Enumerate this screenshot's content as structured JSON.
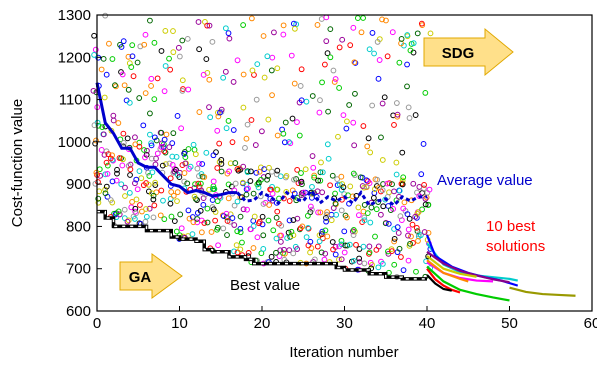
{
  "chart_data": {
    "type": "scatter",
    "title": "",
    "xlabel": "Iteration number",
    "ylabel": "Cost-function value",
    "xlim": [
      0,
      60
    ],
    "ylim": [
      600,
      1300
    ],
    "x_ticks": [
      0,
      10,
      20,
      30,
      40,
      50,
      60
    ],
    "y_ticks": [
      600,
      700,
      800,
      900,
      1000,
      1100,
      1200,
      1300
    ],
    "grid": false,
    "legend": "none",
    "population_colors": [
      "#ff0000",
      "#0000ff",
      "#00cc00",
      "#ff00ff",
      "#00cccc",
      "#cccc00",
      "#000000",
      "#ff8800",
      "#990099",
      "#006600",
      "#999999"
    ],
    "population_markers": {
      "x_range": [
        0,
        40
      ],
      "per_iteration_count": 22,
      "value_range": [
        640,
        1300
      ],
      "description_values": "many candidate solutions per GA iteration, dense between ~680 and ~1000"
    },
    "series": [
      {
        "name": "Average value",
        "color": "#0000cc",
        "x": [
          0,
          1,
          2,
          3,
          4,
          5,
          6,
          7,
          8,
          9,
          10,
          11,
          12,
          13,
          14,
          15,
          16,
          17,
          18,
          19,
          20,
          21,
          22,
          23,
          24,
          25,
          26,
          27,
          28,
          29,
          30,
          31,
          32,
          33,
          34,
          35,
          36,
          37,
          38,
          39,
          40
        ],
        "values": [
          1140,
          1045,
          1020,
          985,
          985,
          950,
          940,
          940,
          920,
          900,
          895,
          880,
          885,
          880,
          872,
          875,
          880,
          880,
          860,
          862,
          880,
          870,
          855,
          880,
          865,
          860,
          885,
          855,
          870,
          860,
          870,
          855,
          880,
          850,
          860,
          865,
          850,
          870,
          860,
          870,
          870
        ],
        "segment_types": "solid for x 0-17, dotted 17-40"
      },
      {
        "name": "Best value",
        "color": "#000000",
        "x": [
          0,
          1,
          2,
          3,
          4,
          5,
          6,
          7,
          8,
          9,
          10,
          11,
          12,
          13,
          14,
          15,
          16,
          17,
          18,
          19,
          20,
          21,
          22,
          23,
          24,
          25,
          26,
          27,
          28,
          29,
          30,
          31,
          32,
          33,
          34,
          35,
          36,
          37,
          38,
          39,
          40
        ],
        "values": [
          835,
          820,
          800,
          800,
          800,
          800,
          790,
          790,
          790,
          775,
          770,
          770,
          765,
          745,
          740,
          740,
          728,
          728,
          722,
          712,
          712,
          712,
          712,
          712,
          712,
          712,
          712,
          712,
          712,
          703,
          697,
          697,
          697,
          688,
          688,
          680,
          680,
          676,
          676,
          676,
          676
        ]
      }
    ],
    "sdg_curves": [
      {
        "color": "#ff0000",
        "x": [
          40,
          41,
          42,
          43,
          44
        ],
        "values": [
          700,
          675,
          660,
          650,
          644
        ]
      },
      {
        "color": "#000000",
        "x": [
          40,
          41,
          42,
          43
        ],
        "values": [
          685,
          665,
          652,
          648
        ]
      },
      {
        "color": "#00cc00",
        "x": [
          40,
          42,
          44,
          46,
          48,
          50
        ],
        "values": [
          705,
          670,
          650,
          640,
          632,
          625
        ]
      },
      {
        "color": "#ff00ff",
        "x": [
          40,
          42,
          44,
          46,
          48
        ],
        "values": [
          715,
          690,
          678,
          672,
          670
        ]
      },
      {
        "color": "#00cccc",
        "x": [
          40,
          42,
          44,
          46,
          48,
          50,
          51
        ],
        "values": [
          760,
          710,
          692,
          684,
          680,
          676,
          672
        ]
      },
      {
        "color": "#0000ff",
        "x": [
          40,
          41,
          43,
          45,
          47,
          49,
          51
        ],
        "values": [
          780,
          730,
          705,
          690,
          680,
          672,
          660
        ]
      },
      {
        "color": "#880088",
        "x": [
          40,
          42,
          44,
          46,
          48,
          50
        ],
        "values": [
          740,
          712,
          695,
          684,
          675,
          668
        ]
      },
      {
        "color": "#999900",
        "x": [
          50,
          52,
          54,
          56,
          58
        ],
        "values": [
          655,
          645,
          640,
          638,
          636
        ]
      },
      {
        "color": "#cccc00",
        "x": [
          40,
          42,
          44,
          46
        ],
        "values": [
          730,
          700,
          688,
          681
        ]
      },
      {
        "color": "#ff8800",
        "x": [
          40,
          42,
          44,
          45
        ],
        "values": [
          720,
          690,
          676,
          670
        ]
      }
    ],
    "annotations": [
      {
        "text": "Average value",
        "color": "#0000cc"
      },
      {
        "text": "10 best",
        "color": "#ff0000"
      },
      {
        "text": "solutions",
        "color": "#ff0000"
      },
      {
        "text": "Best value",
        "color": "#000000"
      },
      {
        "text": "GA",
        "color": "#000000"
      },
      {
        "text": "SDG",
        "color": "#000000"
      }
    ]
  }
}
